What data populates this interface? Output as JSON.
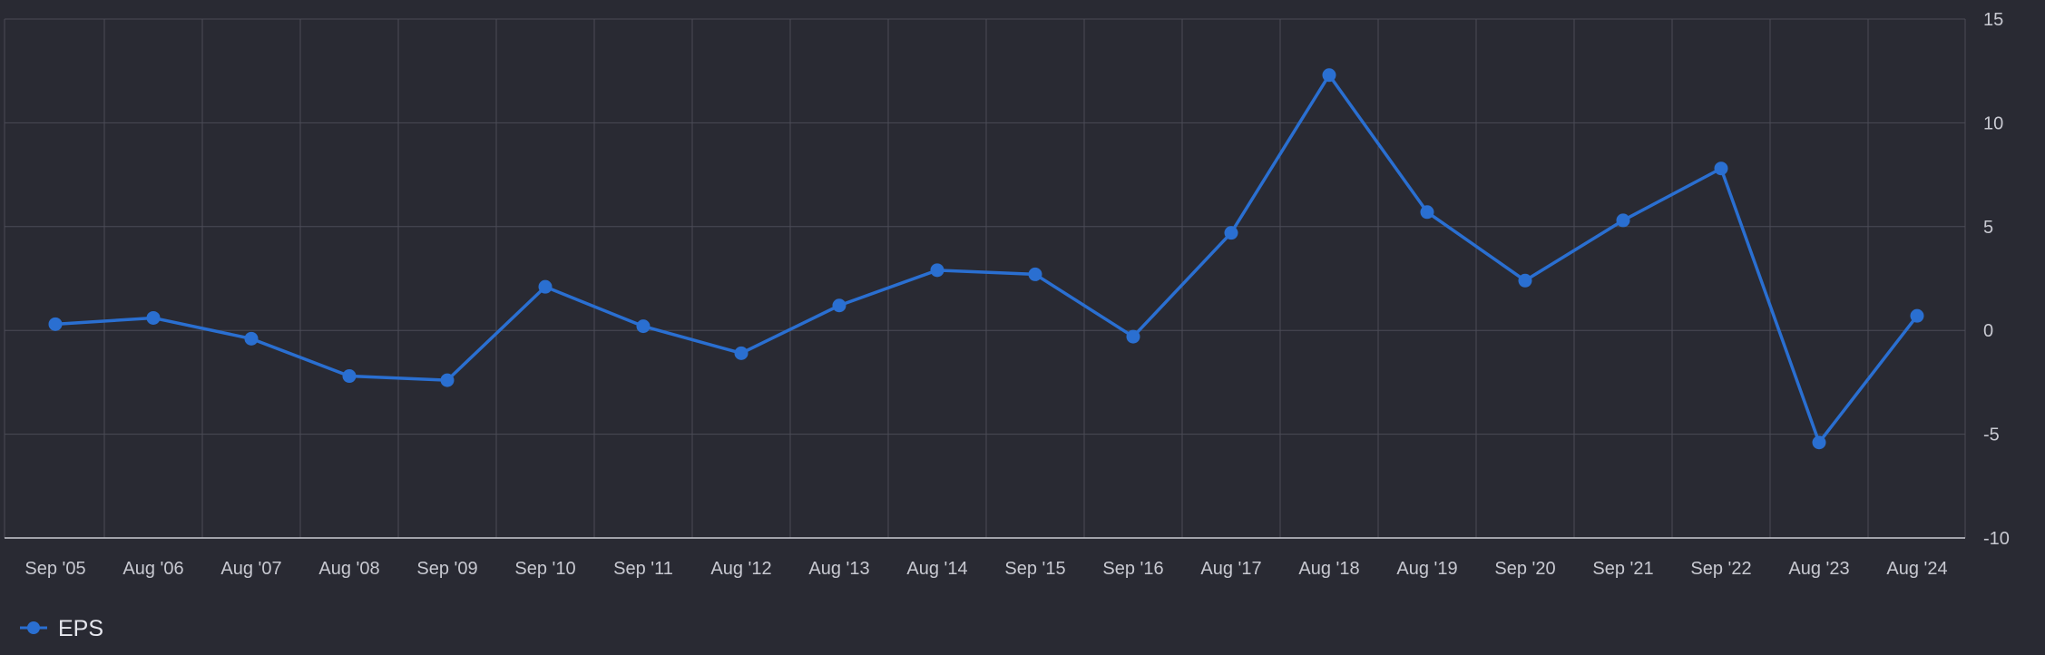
{
  "chart_data": {
    "type": "line",
    "title": "",
    "xlabel": "",
    "ylabel": "",
    "categories": [
      "Sep '05",
      "Aug '06",
      "Aug '07",
      "Aug '08",
      "Sep '09",
      "Sep '10",
      "Sep '11",
      "Aug '12",
      "Aug '13",
      "Aug '14",
      "Sep '15",
      "Sep '16",
      "Aug '17",
      "Aug '18",
      "Aug '19",
      "Sep '20",
      "Sep '21",
      "Sep '22",
      "Aug '23",
      "Aug '24"
    ],
    "series": [
      {
        "name": "EPS",
        "color": "#2a6fd1",
        "values": [
          0.3,
          0.6,
          -0.4,
          -2.2,
          -2.4,
          2.1,
          0.2,
          -1.1,
          1.2,
          2.9,
          2.7,
          -0.3,
          4.7,
          12.3,
          5.7,
          2.4,
          5.3,
          7.8,
          -5.4,
          0.7
        ]
      }
    ],
    "ylim": [
      -10,
      15
    ],
    "yticks": [
      "15",
      "10",
      "5",
      "0",
      "-5",
      "-10"
    ],
    "ytick_values": [
      15,
      10,
      5,
      0,
      -5,
      -10
    ],
    "y_axis_side": "right",
    "grid": true,
    "legend_position": "bottom-left"
  }
}
